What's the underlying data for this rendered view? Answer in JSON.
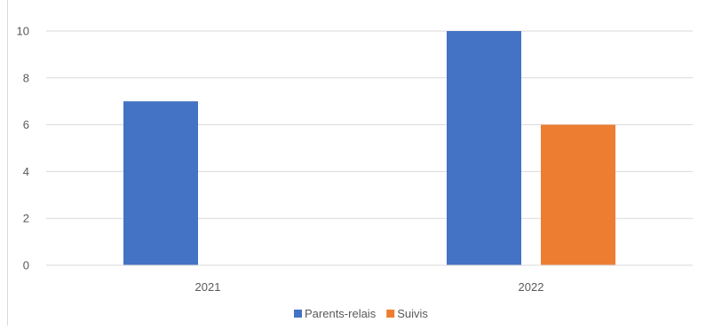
{
  "chart_data": {
    "type": "bar",
    "title": "",
    "xlabel": "",
    "ylabel": "",
    "categories": [
      "2021",
      "2022"
    ],
    "series": [
      {
        "name": "Parents-relais",
        "values": [
          7,
          10
        ],
        "color": "#4472c4"
      },
      {
        "name": "Suivis",
        "values": [
          0,
          6
        ],
        "color": "#ed7d31"
      }
    ],
    "ylim": [
      0,
      10
    ],
    "yticks": [
      0,
      2,
      4,
      6,
      8,
      10
    ],
    "grid": true,
    "gridColor": "#d9d9d9",
    "legendPosition": "bottom"
  }
}
